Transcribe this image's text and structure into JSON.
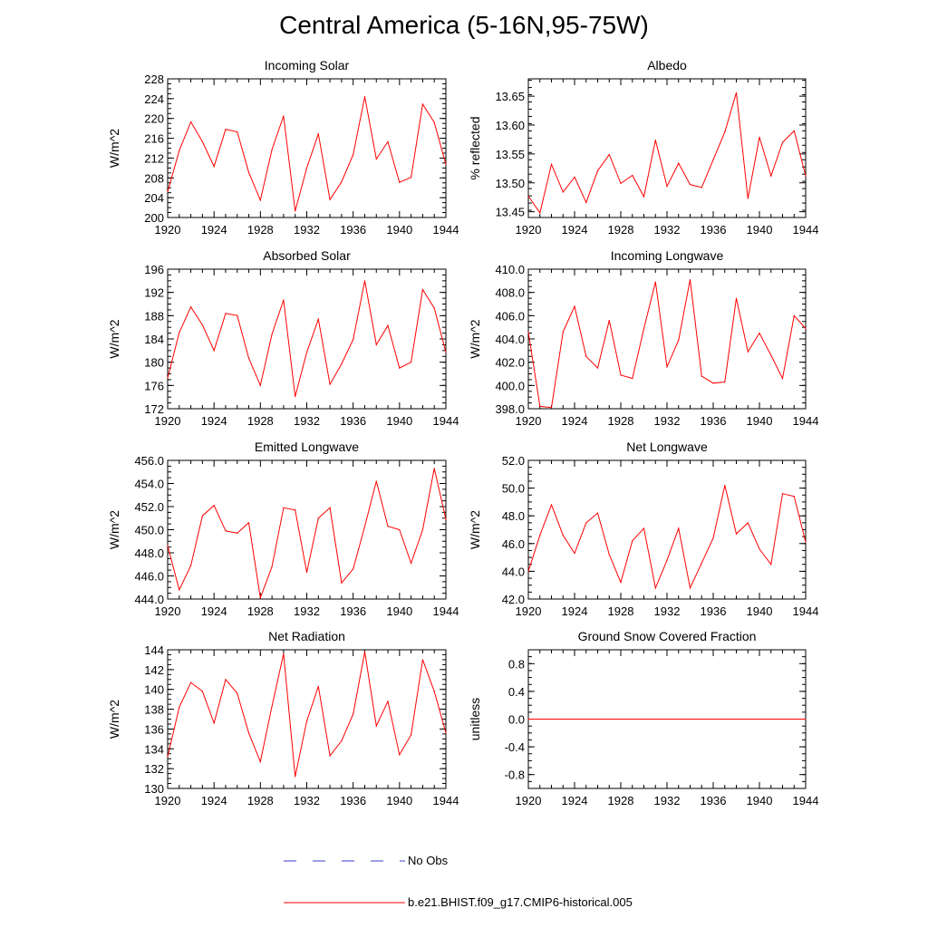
{
  "page": {
    "title": "Central America (5-16N,95-75W)"
  },
  "legend": {
    "entries": [
      {
        "label": "No Obs",
        "color": "#3b3bcf",
        "style": "dashed"
      },
      {
        "label": "b.e21.BHIST.f09_g17.CMIP6-historical.005",
        "color": "#ff0000",
        "style": "solid"
      }
    ]
  },
  "chart_data": [
    {
      "type": "line",
      "title": "Incoming Solar",
      "ylabel": "W/m^2",
      "xlabel": "",
      "xlim": [
        1920,
        1944
      ],
      "ylim": [
        200,
        228
      ],
      "xticks": [
        "1920",
        "1924",
        "1928",
        "1932",
        "1936",
        "1940",
        "1944"
      ],
      "yticks": [
        "200",
        "204",
        "208",
        "212",
        "216",
        "220",
        "224",
        "228"
      ],
      "ytick_values": [
        200,
        204,
        208,
        212,
        216,
        220,
        224,
        228
      ],
      "x": [
        1920,
        1921,
        1922,
        1923,
        1924,
        1925,
        1926,
        1927,
        1928,
        1929,
        1930,
        1931,
        1932,
        1933,
        1934,
        1935,
        1936,
        1937,
        1938,
        1939,
        1940,
        1941,
        1942,
        1943,
        1944
      ],
      "series": [
        {
          "name": "b.e21.BHIST.f09_g17.CMIP6-historical.005",
          "color": "#ff0000",
          "values": [
            205.2,
            213.5,
            219.3,
            215.3,
            210.3,
            217.8,
            217.3,
            209.1,
            203.5,
            213.7,
            220.5,
            201.3,
            210.0,
            216.9,
            203.6,
            207.2,
            212.7,
            224.4,
            211.8,
            215.3,
            207.1,
            208.1,
            222.9,
            219.2,
            210.7
          ]
        }
      ]
    },
    {
      "type": "line",
      "title": "Albedo",
      "ylabel": "% reflected",
      "xlabel": "",
      "xlim": [
        1920,
        1944
      ],
      "ylim": [
        13.44,
        13.68
      ],
      "xticks": [
        "1920",
        "1924",
        "1928",
        "1932",
        "1936",
        "1940",
        "1944"
      ],
      "yticks": [
        "13.45",
        "13.50",
        "13.55",
        "13.60",
        "13.65"
      ],
      "ytick_values": [
        13.45,
        13.5,
        13.55,
        13.6,
        13.65
      ],
      "x": [
        1920,
        1921,
        1922,
        1923,
        1924,
        1925,
        1926,
        1927,
        1928,
        1929,
        1930,
        1931,
        1932,
        1933,
        1934,
        1935,
        1936,
        1937,
        1938,
        1939,
        1940,
        1941,
        1942,
        1943,
        1944
      ],
      "series": [
        {
          "name": "b.e21.BHIST.f09_g17.CMIP6-historical.005",
          "color": "#ff0000",
          "values": [
            13.477,
            13.448,
            13.532,
            13.484,
            13.51,
            13.466,
            13.521,
            13.549,
            13.499,
            13.513,
            13.476,
            13.574,
            13.494,
            13.534,
            13.497,
            13.492,
            13.54,
            13.588,
            13.656,
            13.473,
            13.579,
            13.512,
            13.57,
            13.59,
            13.512
          ]
        }
      ]
    },
    {
      "type": "line",
      "title": "Absorbed Solar",
      "ylabel": "W/m^2",
      "xlabel": "",
      "xlim": [
        1920,
        1944
      ],
      "ylim": [
        172,
        196
      ],
      "xticks": [
        "1920",
        "1924",
        "1928",
        "1932",
        "1936",
        "1940",
        "1944"
      ],
      "yticks": [
        "172",
        "176",
        "180",
        "184",
        "188",
        "192",
        "196"
      ],
      "ytick_values": [
        172,
        176,
        180,
        184,
        188,
        192,
        196
      ],
      "x": [
        1920,
        1921,
        1922,
        1923,
        1924,
        1925,
        1926,
        1927,
        1928,
        1929,
        1930,
        1931,
        1932,
        1933,
        1934,
        1935,
        1936,
        1937,
        1938,
        1939,
        1940,
        1941,
        1942,
        1943,
        1944
      ],
      "series": [
        {
          "name": "b.e21.BHIST.f09_g17.CMIP6-historical.005",
          "color": "#ff0000",
          "values": [
            177.3,
            185.1,
            189.5,
            186.4,
            182.0,
            188.4,
            188.0,
            180.7,
            176.0,
            184.8,
            190.7,
            174.1,
            181.7,
            187.4,
            176.2,
            179.7,
            183.9,
            194.0,
            183.0,
            186.3,
            179.0,
            180.0,
            192.5,
            189.3,
            181.7
          ]
        }
      ]
    },
    {
      "type": "line",
      "title": "Incoming Longwave",
      "ylabel": "W/m^2",
      "xlabel": "",
      "xlim": [
        1920,
        1944
      ],
      "ylim": [
        398.0,
        410.0
      ],
      "xticks": [
        "1920",
        "1924",
        "1928",
        "1932",
        "1936",
        "1940",
        "1944"
      ],
      "yticks": [
        "398.0",
        "400.0",
        "402.0",
        "404.0",
        "406.0",
        "408.0",
        "410.0"
      ],
      "ytick_values": [
        398,
        400,
        402,
        404,
        406,
        408,
        410
      ],
      "x": [
        1920,
        1921,
        1922,
        1923,
        1924,
        1925,
        1926,
        1927,
        1928,
        1929,
        1930,
        1931,
        1932,
        1933,
        1934,
        1935,
        1936,
        1937,
        1938,
        1939,
        1940,
        1941,
        1942,
        1943,
        1944
      ],
      "series": [
        {
          "name": "b.e21.BHIST.f09_g17.CMIP6-historical.005",
          "color": "#ff0000",
          "values": [
            404.6,
            398.2,
            398.1,
            404.6,
            406.8,
            402.5,
            401.5,
            405.6,
            400.9,
            400.6,
            404.9,
            408.9,
            401.6,
            403.9,
            409.1,
            400.8,
            400.2,
            400.3,
            407.5,
            402.9,
            404.5,
            402.6,
            400.6,
            406.0,
            404.9
          ]
        }
      ]
    },
    {
      "type": "line",
      "title": "Emitted Longwave",
      "ylabel": "W/m^2",
      "xlabel": "",
      "xlim": [
        1920,
        1944
      ],
      "ylim": [
        444.0,
        456.0
      ],
      "xticks": [
        "1920",
        "1924",
        "1928",
        "1932",
        "1936",
        "1940",
        "1944"
      ],
      "yticks": [
        "444.0",
        "446.0",
        "448.0",
        "450.0",
        "452.0",
        "454.0",
        "456.0"
      ],
      "ytick_values": [
        444,
        446,
        448,
        450,
        452,
        454,
        456
      ],
      "x": [
        1920,
        1921,
        1922,
        1923,
        1924,
        1925,
        1926,
        1927,
        1928,
        1929,
        1930,
        1931,
        1932,
        1933,
        1934,
        1935,
        1936,
        1937,
        1938,
        1939,
        1940,
        1941,
        1942,
        1943,
        1944
      ],
      "series": [
        {
          "name": "b.e21.BHIST.f09_g17.CMIP6-historical.005",
          "color": "#ff0000",
          "values": [
            448.6,
            444.8,
            446.9,
            451.2,
            452.1,
            449.9,
            449.7,
            450.6,
            444.1,
            446.8,
            451.9,
            451.7,
            446.3,
            451.0,
            451.9,
            445.4,
            446.6,
            450.3,
            454.2,
            450.3,
            450.0,
            447.1,
            450.0,
            455.3,
            450.9
          ]
        }
      ]
    },
    {
      "type": "line",
      "title": "Net Longwave",
      "ylabel": "W/m^2",
      "xlabel": "",
      "xlim": [
        1920,
        1944
      ],
      "ylim": [
        42.0,
        52.0
      ],
      "xticks": [
        "1920",
        "1924",
        "1928",
        "1932",
        "1936",
        "1940",
        "1944"
      ],
      "yticks": [
        "42.0",
        "44.0",
        "46.0",
        "48.0",
        "50.0",
        "52.0"
      ],
      "ytick_values": [
        42,
        44,
        46,
        48,
        50,
        52
      ],
      "x": [
        1920,
        1921,
        1922,
        1923,
        1924,
        1925,
        1926,
        1927,
        1928,
        1929,
        1930,
        1931,
        1932,
        1933,
        1934,
        1935,
        1936,
        1937,
        1938,
        1939,
        1940,
        1941,
        1942,
        1943,
        1944
      ],
      "series": [
        {
          "name": "b.e21.BHIST.f09_g17.CMIP6-historical.005",
          "color": "#ff0000",
          "values": [
            44.0,
            46.6,
            48.8,
            46.6,
            45.3,
            47.5,
            48.2,
            45.2,
            43.2,
            46.2,
            47.1,
            42.8,
            44.8,
            47.1,
            42.8,
            44.6,
            46.4,
            50.2,
            46.7,
            47.5,
            45.6,
            44.5,
            49.6,
            49.4,
            46.1
          ]
        }
      ]
    },
    {
      "type": "line",
      "title": "Net Radiation",
      "ylabel": "W/m^2",
      "xlabel": "",
      "xlim": [
        1920,
        1944
      ],
      "ylim": [
        130,
        144
      ],
      "xticks": [
        "1920",
        "1924",
        "1928",
        "1932",
        "1936",
        "1940",
        "1944"
      ],
      "yticks": [
        "130",
        "132",
        "134",
        "136",
        "138",
        "140",
        "142",
        "144"
      ],
      "ytick_values": [
        130,
        132,
        134,
        136,
        138,
        140,
        142,
        144
      ],
      "x": [
        1920,
        1921,
        1922,
        1923,
        1924,
        1925,
        1926,
        1927,
        1928,
        1929,
        1930,
        1931,
        1932,
        1933,
        1934,
        1935,
        1936,
        1937,
        1938,
        1939,
        1940,
        1941,
        1942,
        1943,
        1944
      ],
      "series": [
        {
          "name": "b.e21.BHIST.f09_g17.CMIP6-historical.005",
          "color": "#ff0000",
          "values": [
            133.2,
            138.2,
            140.7,
            139.8,
            136.6,
            141.0,
            139.6,
            135.6,
            132.7,
            138.3,
            143.6,
            131.2,
            136.8,
            140.3,
            133.3,
            134.8,
            137.5,
            143.8,
            136.3,
            138.8,
            133.4,
            135.4,
            143.0,
            139.8,
            135.6
          ]
        }
      ]
    },
    {
      "type": "line",
      "title": "Ground Snow Covered Fraction",
      "ylabel": "unitless",
      "xlabel": "",
      "xlim": [
        1920,
        1944
      ],
      "ylim": [
        -1.0,
        1.0
      ],
      "xticks": [
        "1920",
        "1924",
        "1928",
        "1932",
        "1936",
        "1940",
        "1944"
      ],
      "yticks": [
        "-0.8",
        "-0.4",
        "0.0",
        "0.4",
        "0.8"
      ],
      "ytick_values": [
        -0.8,
        -0.4,
        0.0,
        0.4,
        0.8
      ],
      "x": [
        1920,
        1944
      ],
      "series": [
        {
          "name": "b.e21.BHIST.f09_g17.CMIP6-historical.005",
          "color": "#ff0000",
          "values": [
            0.0,
            0.0
          ]
        }
      ]
    }
  ]
}
